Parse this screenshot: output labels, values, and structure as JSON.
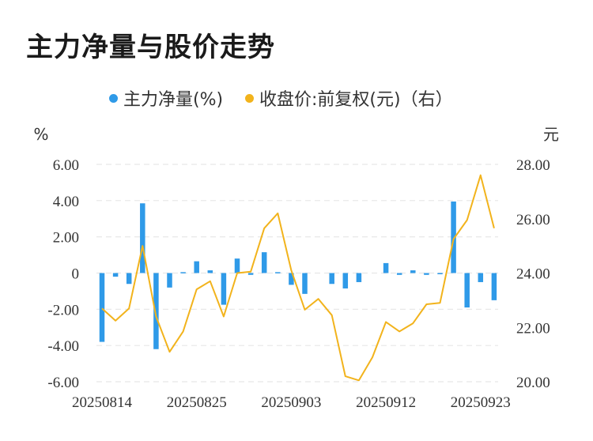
{
  "title": "主力净量与股价走势",
  "legend": {
    "net": {
      "label": "主力净量(%)",
      "color": "#2f9ae8"
    },
    "price": {
      "label": "收盘价:前复权(元)（右）",
      "color": "#f2b31c"
    }
  },
  "chart_data": {
    "type": "bar+line",
    "left_unit": "%",
    "right_unit": "元",
    "x_ticks": [
      "20250814",
      "20250825",
      "20250903",
      "20250912",
      "20250923"
    ],
    "x_tick_indices": [
      0,
      7,
      14,
      21,
      28
    ],
    "y_left": {
      "min": -6,
      "max": 6,
      "ticks": [
        "6.00",
        "4.00",
        "2.00",
        "0",
        "-2.00",
        "-4.00",
        "-6.00"
      ]
    },
    "y_right": {
      "min": 20,
      "max": 28,
      "ticks": [
        "28.00",
        "26.00",
        "24.00",
        "22.00",
        "20.00"
      ]
    },
    "grid": "horizontal dashed",
    "series": [
      {
        "name": "主力净量(%)",
        "type": "bar",
        "axis": "left",
        "values": [
          -3.8,
          -0.2,
          -0.6,
          3.85,
          -4.2,
          -0.8,
          0.05,
          0.65,
          0.15,
          -1.75,
          0.8,
          -0.1,
          1.15,
          0.05,
          -0.65,
          -1.15,
          0,
          -0.6,
          -0.85,
          -0.5,
          0,
          0.55,
          -0.1,
          0.15,
          -0.1,
          -0.05,
          3.95,
          -1.9,
          -0.5,
          -1.5
        ]
      },
      {
        "name": "收盘价:前复权(元)（右）",
        "type": "line",
        "axis": "right",
        "values": [
          22.7,
          22.25,
          22.7,
          25.0,
          22.4,
          21.1,
          21.85,
          23.4,
          23.7,
          22.4,
          24.0,
          24.05,
          25.65,
          26.2,
          24.1,
          22.65,
          23.05,
          22.45,
          20.2,
          20.05,
          20.9,
          22.2,
          21.85,
          22.15,
          22.85,
          22.9,
          25.25,
          25.95,
          27.6,
          25.65
        ]
      }
    ]
  }
}
